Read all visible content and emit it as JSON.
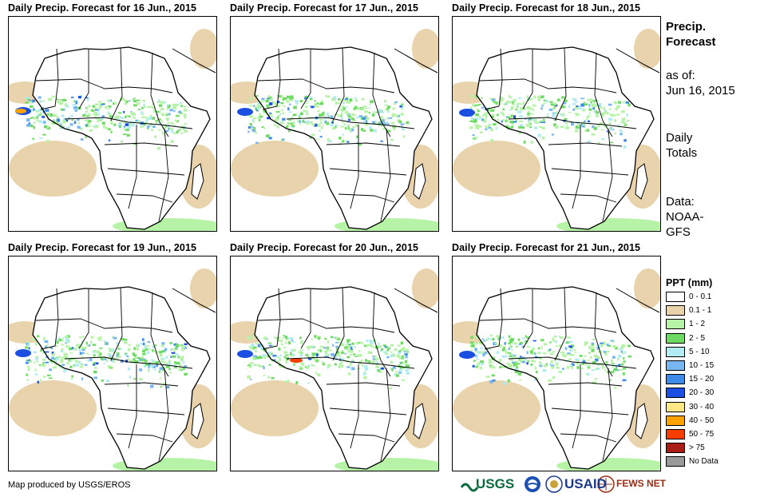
{
  "panels": [
    {
      "title": "Daily Precip. Forecast for 16 Jun., 2015"
    },
    {
      "title": "Daily Precip. Forecast for 17 Jun., 2015"
    },
    {
      "title": "Daily Precip. Forecast for 18 Jun., 2015"
    },
    {
      "title": "Daily Precip. Forecast for 19 Jun., 2015"
    },
    {
      "title": "Daily Precip. Forecast for 20 Jun., 2015"
    },
    {
      "title": "Daily Precip. Forecast for 21 Jun., 2015"
    }
  ],
  "sidebar": {
    "title_line1": "Precip.",
    "title_line2": "Forecast",
    "asof_label": "as of:",
    "asof_date": "Jun 16, 2015",
    "totals_line1": "Daily",
    "totals_line2": "Totals",
    "data_label": "Data:",
    "data_src1": "NOAA-",
    "data_src2": "GFS"
  },
  "legend": {
    "title": "PPT (mm)",
    "items": [
      {
        "label": "0 - 0.1",
        "color": "#ffffff"
      },
      {
        "label": "0.1 - 1",
        "color": "#e9d3ac"
      },
      {
        "label": "1 - 2",
        "color": "#b6f3a7"
      },
      {
        "label": "2 - 5",
        "color": "#6ddb62"
      },
      {
        "label": "5 - 10",
        "color": "#b2ecf2"
      },
      {
        "label": "10 - 15",
        "color": "#78b6f2"
      },
      {
        "label": "15 - 20",
        "color": "#3e8ae9"
      },
      {
        "label": "20 - 30",
        "color": "#1b4fe1"
      },
      {
        "label": "30 - 40",
        "color": "#fde787"
      },
      {
        "label": "40 - 50",
        "color": "#f9a200"
      },
      {
        "label": "50 - 75",
        "color": "#f63d00"
      },
      {
        "label": "> 75",
        "color": "#a81d16"
      },
      {
        "label": "No Data",
        "color": "#9a9a9a"
      }
    ]
  },
  "footer": {
    "credit": "Map produced by USGS/EROS",
    "logo_usgs": "USGS",
    "logo_usaid": "USAID",
    "logo_fews": "FEWS NET"
  }
}
